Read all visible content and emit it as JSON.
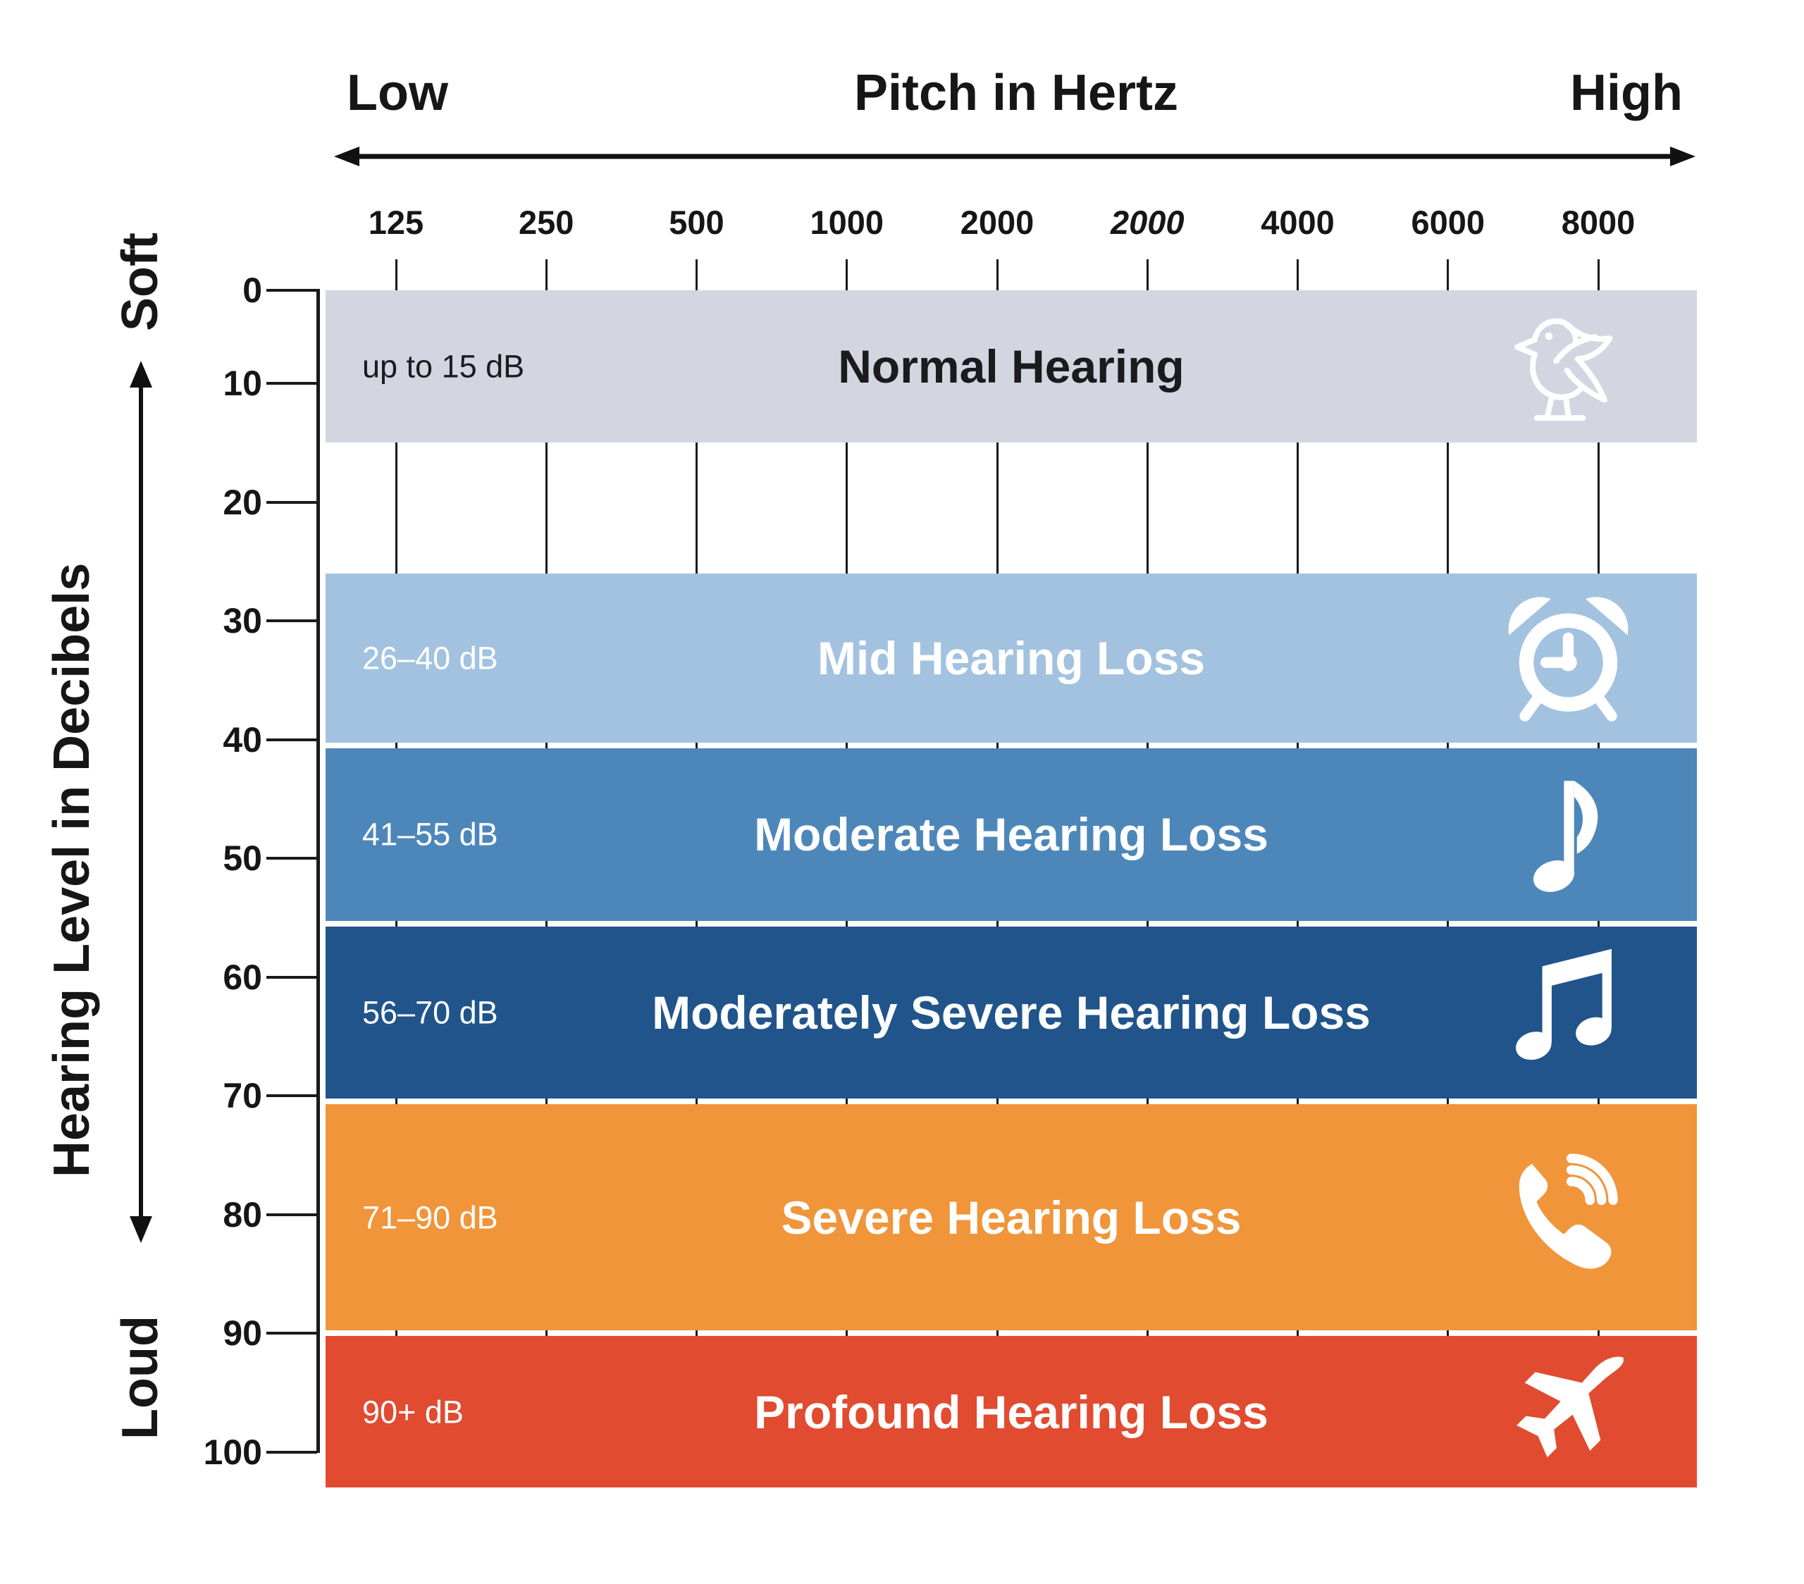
{
  "header": {
    "low": "Low",
    "title": "Pitch in Hertz",
    "high": "High"
  },
  "side": {
    "soft": "Soft",
    "axis_label": "Hearing Level in Decibels",
    "loud": "Loud"
  },
  "chart_data": {
    "type": "bar",
    "subtype": "horizontal-severity-bands",
    "grid": true,
    "x_axis": {
      "label": "Pitch in Hertz",
      "unit": "Hz",
      "low_end": "Low",
      "high_end": "High",
      "ticks": [
        {
          "label": "125"
        },
        {
          "label": "250"
        },
        {
          "label": "500"
        },
        {
          "label": "1000"
        },
        {
          "label": "2000"
        },
        {
          "label": "2000",
          "italic": true
        },
        {
          "label": "4000"
        },
        {
          "label": "6000"
        },
        {
          "label": "8000"
        }
      ]
    },
    "y_axis": {
      "label": "Hearing Level in Decibels",
      "unit": "dB",
      "soft_end": "Soft",
      "loud_end": "Loud",
      "ticks": [
        "0",
        "10",
        "20",
        "30",
        "40",
        "50",
        "60",
        "70",
        "80",
        "90",
        "100"
      ],
      "range": [
        0,
        103
      ],
      "direction": "down"
    },
    "bands": [
      {
        "name": "Normal Hearing",
        "range_label": "up to 15 dB",
        "db_min": 0,
        "db_max": 15,
        "color": "#d3d5e0",
        "text_color": "#1b1b1d",
        "icon": "bird-icon"
      },
      {
        "name": "Mid Hearing Loss",
        "range_label": "26–40 dB",
        "db_min": 26,
        "db_max": 40,
        "color": "#a2c2e0",
        "text_color": "#ffffff",
        "icon": "alarm-clock-icon"
      },
      {
        "name": "Moderate Hearing Loss",
        "range_label": "41–55 dB",
        "db_min": 41,
        "db_max": 55,
        "color": "#4d87ba",
        "text_color": "#ffffff",
        "icon": "music-note-icon"
      },
      {
        "name": "Moderately Severe Hearing Loss",
        "range_label": "56–70 dB",
        "db_min": 56,
        "db_max": 70,
        "color": "#20548b",
        "text_color": "#ffffff",
        "icon": "double-music-note-icon"
      },
      {
        "name": "Severe Hearing Loss",
        "range_label": "71–90 dB",
        "db_min": 71,
        "db_max": 90,
        "color": "#f0953a",
        "text_color": "#ffffff",
        "icon": "phone-ringing-icon"
      },
      {
        "name": "Profound Hearing Loss",
        "range_label": "90+ dB",
        "db_min": 90,
        "db_max": 103,
        "color": "#e14b30",
        "text_color": "#ffffff",
        "icon": "airplane-icon"
      }
    ]
  }
}
